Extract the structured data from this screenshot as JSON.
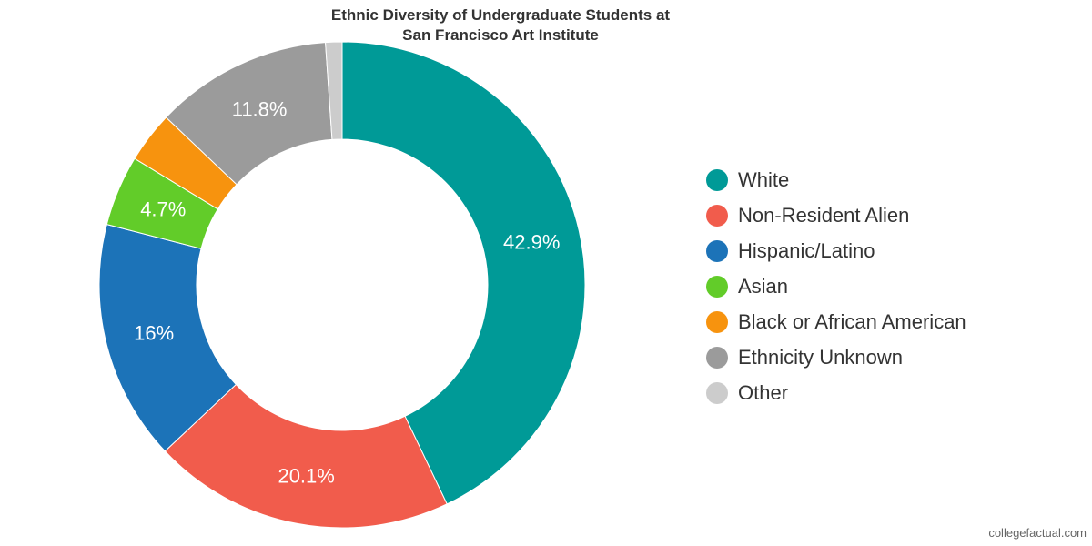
{
  "chart_data": {
    "type": "pie",
    "donut": true,
    "title_lines": [
      "Ethnic Diversity of Undergraduate Students at",
      "San Francisco Art Institute"
    ],
    "legend_position": "right",
    "series": [
      {
        "name": "White",
        "value": 42.9,
        "label": "42.9%",
        "color": "#009a97"
      },
      {
        "name": "Non-Resident Alien",
        "value": 20.1,
        "label": "20.1%",
        "color": "#f15c4c"
      },
      {
        "name": "Hispanic/Latino",
        "value": 16,
        "label": "16%",
        "color": "#1c73b8"
      },
      {
        "name": "Asian",
        "value": 4.7,
        "label": "4.7%",
        "color": "#62cc29"
      },
      {
        "name": "Black or African American",
        "value": 3.4,
        "label": "",
        "color": "#f7930e"
      },
      {
        "name": "Ethnicity Unknown",
        "value": 11.8,
        "label": "11.8%",
        "color": "#9b9b9b"
      },
      {
        "name": "Other",
        "value": 1.1,
        "label": "",
        "color": "#cccccc"
      }
    ]
  },
  "credit": "collegefactual.com"
}
